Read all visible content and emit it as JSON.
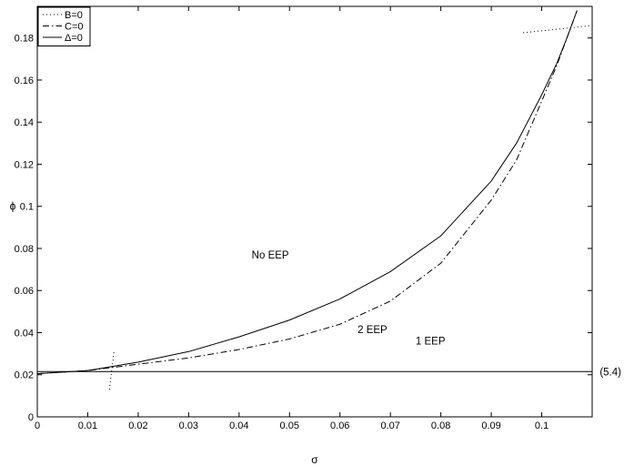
{
  "chart_data": {
    "type": "line",
    "title": "",
    "xlabel": "σ",
    "ylabel": "ϕ",
    "xlim": [
      0,
      0.11
    ],
    "ylim": [
      0,
      0.195
    ],
    "xticks": [
      0,
      0.01,
      0.02,
      0.03,
      0.04,
      0.05,
      0.06,
      0.07,
      0.08,
      0.09,
      0.1
    ],
    "xtick_labels": [
      "0",
      "0.01",
      "0.02",
      "0.03",
      "0.04",
      "0.05",
      "0.06",
      "0.07",
      "0.08",
      "0.09",
      "0.1"
    ],
    "yticks": [
      0,
      0.02,
      0.04,
      0.06,
      0.08,
      0.1,
      0.12,
      0.14,
      0.16,
      0.18
    ],
    "ytick_labels": [
      "0",
      "0.02",
      "0.04",
      "0.06",
      "0.08",
      "0.1",
      "0.12",
      "0.14",
      "0.16",
      "0.18"
    ],
    "grid": false,
    "legend_position": "top-left",
    "series": [
      {
        "name": "B=0",
        "style": "dotted",
        "segments": [
          {
            "x": [
              0.0143,
              0.0152
            ],
            "y": [
              0.013,
              0.031
            ]
          },
          {
            "x": [
              0.0963,
              0.1105
            ],
            "y": [
              0.1825,
              0.186
            ]
          }
        ]
      },
      {
        "name": "C=0",
        "style": "dashdot",
        "x": [
          0,
          0.01,
          0.02,
          0.03,
          0.04,
          0.05,
          0.06,
          0.07,
          0.08,
          0.09,
          0.095,
          0.1,
          0.103,
          0.105,
          0.107
        ],
        "y": [
          0.0205,
          0.022,
          0.025,
          0.028,
          0.032,
          0.037,
          0.044,
          0.055,
          0.073,
          0.103,
          0.122,
          0.15,
          0.167,
          0.18,
          0.193
        ]
      },
      {
        "name": "Δ=0",
        "style": "solid",
        "x": [
          0,
          0.01,
          0.02,
          0.03,
          0.04,
          0.05,
          0.06,
          0.07,
          0.08,
          0.09,
          0.095,
          0.1,
          0.103,
          0.105,
          0.107
        ],
        "y": [
          0.0205,
          0.022,
          0.026,
          0.031,
          0.038,
          0.046,
          0.056,
          0.069,
          0.086,
          0.112,
          0.13,
          0.153,
          0.168,
          0.18,
          0.193
        ]
      },
      {
        "name": "",
        "style": "solid",
        "x": [
          0,
          0.11
        ],
        "y": [
          0.0215,
          0.0215
        ]
      }
    ],
    "annotations": [
      {
        "text": "No EEP",
        "x": 0.0425,
        "y": 0.077
      },
      {
        "text": "2 EEP",
        "x": 0.0635,
        "y": 0.0415
      },
      {
        "text": "1 EEP",
        "x": 0.075,
        "y": 0.036
      },
      {
        "text": "(5.4)",
        "x": 0.1115,
        "y": 0.0215
      }
    ],
    "colors": {
      "lines": "#000000",
      "background": "#ffffff"
    }
  }
}
